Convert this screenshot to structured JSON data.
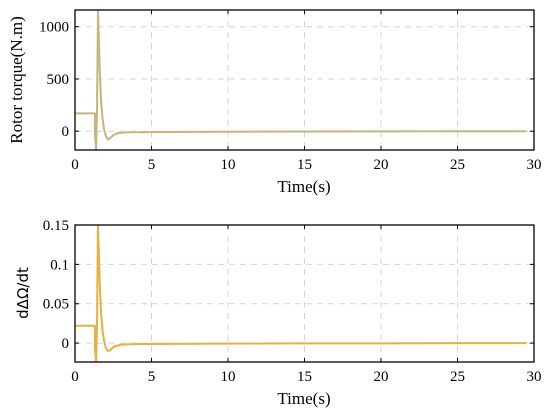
{
  "chart_data": [
    {
      "type": "line",
      "xlabel": "Time(s)",
      "ylabel": "Rotor torque(N.m)",
      "xlim": [
        0,
        30
      ],
      "ylim": [
        -180,
        1160
      ],
      "xticks": [
        0,
        5,
        10,
        15,
        20,
        25,
        30
      ],
      "xtick_labels": [
        "0",
        "5",
        "10",
        "15",
        "20",
        "25",
        "30"
      ],
      "yticks": [
        0,
        500,
        1000
      ],
      "ytick_labels": [
        "0",
        "500",
        "1000"
      ],
      "grid": true,
      "series": [
        {
          "color": "#c9b47a",
          "x": [
            0,
            1.3,
            1.3,
            1.38,
            1.44,
            1.5,
            1.56,
            1.62,
            1.7,
            1.8,
            1.9,
            2.0,
            2.1,
            2.2,
            2.3,
            2.45,
            2.6,
            2.8,
            3.0,
            3.3,
            3.6,
            4.0,
            5.0,
            6.0,
            8.0,
            10.0,
            12.0,
            15.0,
            20.0,
            25.0,
            29.5
          ],
          "y": [
            170,
            170,
            -30,
            -180,
            200,
            1160,
            880,
            560,
            300,
            120,
            20,
            -40,
            -70,
            -80,
            -65,
            -45,
            -30,
            -20,
            -15,
            -12,
            -10,
            -10,
            -9,
            -8,
            -7,
            -5,
            -4,
            -3,
            -2,
            -1,
            0
          ]
        }
      ]
    },
    {
      "type": "line",
      "xlabel": "Time(s)",
      "ylabel": "dΔΩ/dt",
      "xlim": [
        0,
        30
      ],
      "ylim": [
        -0.024,
        0.15
      ],
      "xticks": [
        0,
        5,
        10,
        15,
        20,
        25,
        30
      ],
      "xtick_labels": [
        "0",
        "5",
        "10",
        "15",
        "20",
        "25",
        "30"
      ],
      "yticks": [
        0,
        0.05,
        0.1,
        0.15
      ],
      "ytick_labels": [
        "0",
        "0.05",
        "0.1",
        "0.15"
      ],
      "grid": true,
      "series": [
        {
          "color": "#e8b03c",
          "x": [
            0,
            1.3,
            1.3,
            1.38,
            1.44,
            1.5,
            1.56,
            1.62,
            1.7,
            1.8,
            1.9,
            2.0,
            2.1,
            2.2,
            2.3,
            2.45,
            2.6,
            2.8,
            3.0,
            3.3,
            3.6,
            4.0,
            5.0,
            6.0,
            8.0,
            10.0,
            12.0,
            15.0,
            20.0,
            25.0,
            29.5
          ],
          "y": [
            0.022,
            0.022,
            -0.005,
            -0.024,
            0.025,
            0.15,
            0.115,
            0.073,
            0.04,
            0.016,
            0.003,
            -0.005,
            -0.009,
            -0.01,
            -0.009,
            -0.006,
            -0.004,
            -0.003,
            -0.002,
            -0.0017,
            -0.0014,
            -0.0013,
            -0.0012,
            -0.001,
            -0.0009,
            -0.0007,
            -0.0005,
            -0.0004,
            -0.0003,
            -0.0001,
            0
          ]
        }
      ]
    }
  ]
}
